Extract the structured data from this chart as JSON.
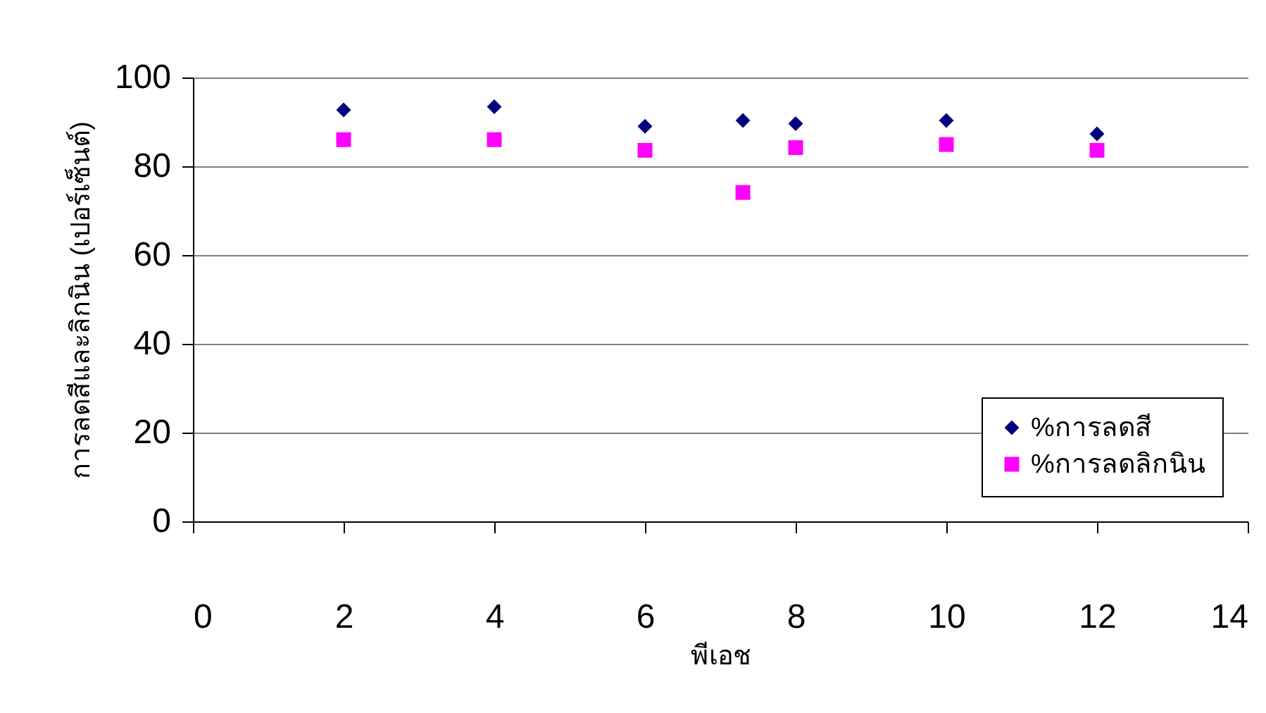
{
  "chart_data": {
    "type": "scatter",
    "xlabel": "พีเอช",
    "ylabel": "การลดสีและลิกนิน (เปอร์เซ็นต์)",
    "x": [
      2,
      4,
      6,
      7.3,
      8,
      10,
      12
    ],
    "series": [
      {
        "name": "%การลดสี",
        "color": "#000080",
        "marker": "diamond",
        "values": [
          92.7,
          93.4,
          89,
          90.3,
          89.6,
          90.3,
          87.3
        ]
      },
      {
        "name": "%การลดลิกนิน",
        "color": "#ff00ff",
        "marker": "square",
        "values": [
          86,
          86,
          83.6,
          74.1,
          84.2,
          84.9,
          83.6
        ]
      }
    ],
    "xlim": [
      0,
      14
    ],
    "xticks": [
      0,
      2,
      4,
      6,
      8,
      10,
      12,
      14
    ],
    "ylim": [
      0,
      100
    ],
    "yticks": [
      0,
      20,
      40,
      60,
      80,
      100
    ],
    "grid": "y",
    "legend": "bottom right"
  }
}
